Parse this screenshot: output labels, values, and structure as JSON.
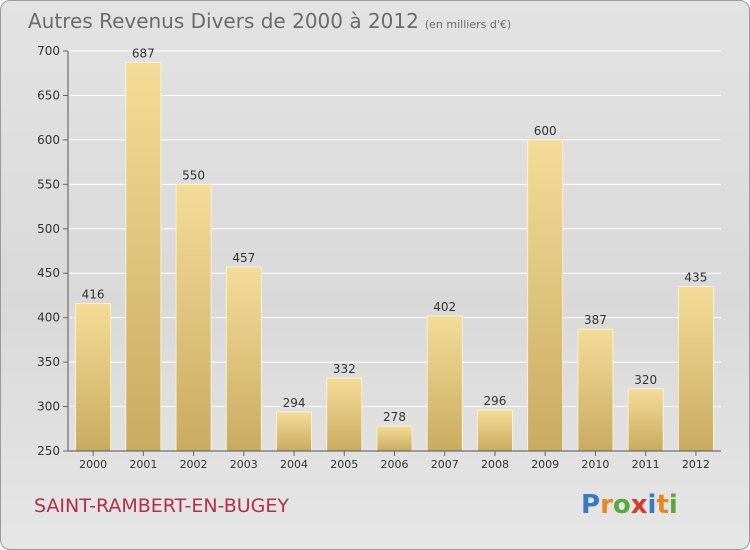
{
  "header": {
    "title": "Autres Revenus Divers de 2000 à 2012",
    "subtitle": "(en milliers d'€)"
  },
  "footer": {
    "commune": "SAINT-RAMBERT-EN-BUGEY"
  },
  "logo": {
    "letters": [
      "P",
      "r",
      "o",
      "x",
      "i",
      "t",
      "i"
    ],
    "colors": [
      "#3a78c2",
      "#e58a1f",
      "#5aa83c",
      "#d93a2a",
      "#3a78c2",
      "#e58a1f",
      "#5aa83c"
    ]
  },
  "colors": {
    "bar_top": "#f4dc98",
    "bar_bottom": "#c9ab60",
    "grid": "#ffffff",
    "axis_text": "#333333"
  },
  "chart_data": {
    "type": "bar",
    "title": "Autres Revenus Divers de 2000 à 2012",
    "subtitle": "(en milliers d'€)",
    "categories": [
      "2000",
      "2001",
      "2002",
      "2003",
      "2004",
      "2005",
      "2006",
      "2007",
      "2008",
      "2009",
      "2010",
      "2011",
      "2012"
    ],
    "values": [
      416,
      687,
      550,
      457,
      294,
      332,
      278,
      402,
      296,
      600,
      387,
      320,
      435
    ],
    "ylim": [
      250,
      700
    ],
    "yticks": [
      250,
      300,
      350,
      400,
      450,
      500,
      550,
      600,
      650,
      700
    ],
    "grid": true,
    "xlabel": "",
    "ylabel": ""
  }
}
